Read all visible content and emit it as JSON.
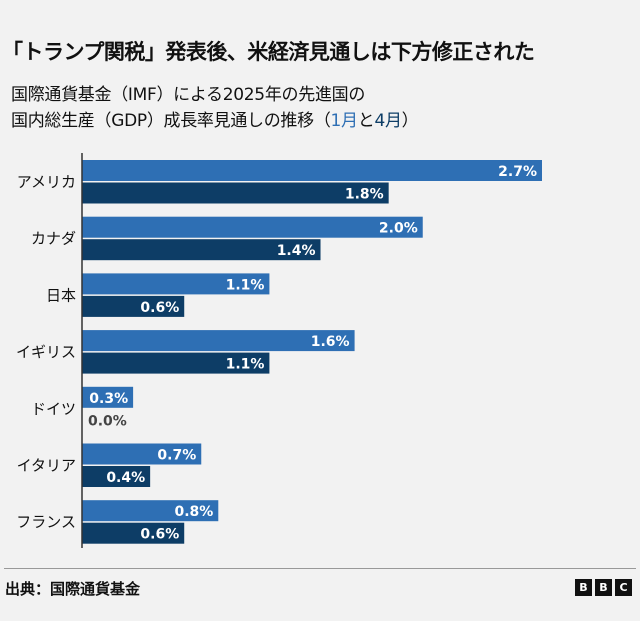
{
  "title": "「トランプ関税」発表後、米経済見通しは下方修正された",
  "subtitle": {
    "line1": "国際通貨基金（IMF）による2025年の先進国の",
    "line2_prefix": "国内総生産（GDP）成長率見通しの推移（",
    "jan": "1月",
    "and": "と",
    "apr": "4月",
    "suffix": "）"
  },
  "chart_data": {
    "type": "bar",
    "orientation": "horizontal",
    "categories": [
      "アメリカ",
      "カナダ",
      "日本",
      "イギリス",
      "ドイツ",
      "イタリア",
      "フランス"
    ],
    "series": [
      {
        "name": "1月",
        "color": "#2e6fb4",
        "values": [
          2.7,
          2.0,
          1.1,
          1.6,
          0.3,
          0.7,
          0.8
        ]
      },
      {
        "name": "4月",
        "color": "#0d3d66",
        "values": [
          1.8,
          1.4,
          0.6,
          1.1,
          0.0,
          0.4,
          0.6
        ]
      }
    ],
    "value_suffix": "%",
    "xlim": [
      0,
      3.0
    ],
    "grid": false
  },
  "footer": {
    "source": "出典：国際通貨基金",
    "logo": [
      "B",
      "B",
      "C"
    ]
  }
}
